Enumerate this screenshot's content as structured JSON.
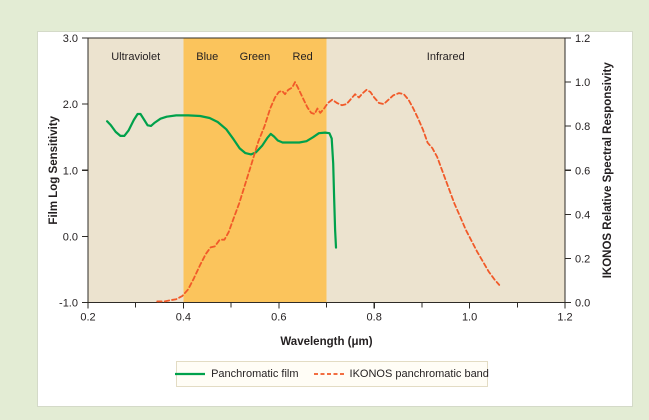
{
  "page": {
    "background": "#e3ecd4"
  },
  "card": {
    "background": "#ffffff",
    "border_color": "#d4dac8"
  },
  "chart_data": {
    "type": "line",
    "title": "",
    "xlabel": "Wavelength (μm)",
    "ylabel_left": "Film Log Sensitivity",
    "ylabel_right": "IKONOS Relative Spectral Responsivity",
    "x_range": [
      0.2,
      1.2
    ],
    "x_major_ticks": [
      0.2,
      0.4,
      0.6,
      0.8,
      1.0,
      1.2
    ],
    "x_minor_ticks": [
      0.3,
      0.5,
      0.7,
      0.9,
      1.1
    ],
    "yleft_range": [
      -1.0,
      3.0
    ],
    "yleft_ticks": [
      -1.0,
      0.0,
      1.0,
      2.0,
      3.0
    ],
    "yright_range": [
      0.0,
      1.2
    ],
    "yright_ticks": [
      0.0,
      0.2,
      0.4,
      0.6,
      0.8,
      1.0,
      1.2
    ],
    "grid": false,
    "legend_position": "bottom",
    "colors": {
      "band_nonvisible": "#ece3cf",
      "band_visible": "#fbc45c",
      "frame": "#2e2b27",
      "text": "#231f20"
    },
    "regions": [
      {
        "label": "Ultraviolet",
        "from": 0.2,
        "to": 0.4,
        "color": "#ece3cf"
      },
      {
        "label": "Blue",
        "from": 0.4,
        "to": 0.5,
        "color": "#fbc45c"
      },
      {
        "label": "Green",
        "from": 0.5,
        "to": 0.6,
        "color": "#fbc45c"
      },
      {
        "label": "Red",
        "from": 0.6,
        "to": 0.7,
        "color": "#fbc45c"
      },
      {
        "label": "Infrared",
        "from": 0.7,
        "to": 1.2,
        "color": "#ece3cf"
      }
    ],
    "series": [
      {
        "name": "Panchromatic film",
        "axis": "left",
        "style": "solid",
        "color": "#00a14b",
        "points": [
          [
            0.24,
            1.74
          ],
          [
            0.248,
            1.68
          ],
          [
            0.258,
            1.58
          ],
          [
            0.268,
            1.52
          ],
          [
            0.276,
            1.52
          ],
          [
            0.285,
            1.6
          ],
          [
            0.296,
            1.76
          ],
          [
            0.304,
            1.85
          ],
          [
            0.31,
            1.85
          ],
          [
            0.318,
            1.76
          ],
          [
            0.325,
            1.68
          ],
          [
            0.332,
            1.67
          ],
          [
            0.34,
            1.72
          ],
          [
            0.352,
            1.78
          ],
          [
            0.365,
            1.81
          ],
          [
            0.385,
            1.83
          ],
          [
            0.41,
            1.83
          ],
          [
            0.435,
            1.82
          ],
          [
            0.455,
            1.79
          ],
          [
            0.472,
            1.73
          ],
          [
            0.49,
            1.62
          ],
          [
            0.505,
            1.47
          ],
          [
            0.518,
            1.33
          ],
          [
            0.53,
            1.26
          ],
          [
            0.542,
            1.24
          ],
          [
            0.552,
            1.27
          ],
          [
            0.565,
            1.37
          ],
          [
            0.576,
            1.49
          ],
          [
            0.583,
            1.55
          ],
          [
            0.59,
            1.51
          ],
          [
            0.598,
            1.45
          ],
          [
            0.608,
            1.42
          ],
          [
            0.625,
            1.42
          ],
          [
            0.643,
            1.42
          ],
          [
            0.658,
            1.44
          ],
          [
            0.672,
            1.5
          ],
          [
            0.684,
            1.56
          ],
          [
            0.697,
            1.57
          ],
          [
            0.706,
            1.56
          ],
          [
            0.711,
            1.48
          ],
          [
            0.714,
            1.1
          ],
          [
            0.716,
            0.6
          ],
          [
            0.718,
            0.1
          ],
          [
            0.72,
            -0.17
          ]
        ]
      },
      {
        "name": "IKONOS panchromatic band",
        "axis": "right",
        "style": "dashed",
        "color": "#f15a29",
        "points": [
          [
            0.345,
            0.005
          ],
          [
            0.36,
            0.005
          ],
          [
            0.372,
            0.01
          ],
          [
            0.385,
            0.015
          ],
          [
            0.398,
            0.03
          ],
          [
            0.41,
            0.06
          ],
          [
            0.422,
            0.11
          ],
          [
            0.435,
            0.17
          ],
          [
            0.447,
            0.22
          ],
          [
            0.457,
            0.25
          ],
          [
            0.466,
            0.255
          ],
          [
            0.476,
            0.285
          ],
          [
            0.486,
            0.285
          ],
          [
            0.495,
            0.32
          ],
          [
            0.505,
            0.38
          ],
          [
            0.517,
            0.45
          ],
          [
            0.53,
            0.54
          ],
          [
            0.543,
            0.63
          ],
          [
            0.557,
            0.73
          ],
          [
            0.57,
            0.8
          ],
          [
            0.582,
            0.88
          ],
          [
            0.592,
            0.93
          ],
          [
            0.6,
            0.955
          ],
          [
            0.607,
            0.96
          ],
          [
            0.613,
            0.945
          ],
          [
            0.62,
            0.965
          ],
          [
            0.628,
            0.975
          ],
          [
            0.634,
            1.0
          ],
          [
            0.64,
            0.975
          ],
          [
            0.65,
            0.93
          ],
          [
            0.66,
            0.885
          ],
          [
            0.668,
            0.86
          ],
          [
            0.675,
            0.855
          ],
          [
            0.681,
            0.88
          ],
          [
            0.687,
            0.86
          ],
          [
            0.695,
            0.88
          ],
          [
            0.703,
            0.905
          ],
          [
            0.712,
            0.92
          ],
          [
            0.722,
            0.905
          ],
          [
            0.732,
            0.895
          ],
          [
            0.742,
            0.9
          ],
          [
            0.752,
            0.925
          ],
          [
            0.76,
            0.945
          ],
          [
            0.768,
            0.93
          ],
          [
            0.776,
            0.95
          ],
          [
            0.784,
            0.965
          ],
          [
            0.792,
            0.955
          ],
          [
            0.8,
            0.93
          ],
          [
            0.81,
            0.905
          ],
          [
            0.82,
            0.9
          ],
          [
            0.83,
            0.92
          ],
          [
            0.84,
            0.94
          ],
          [
            0.852,
            0.95
          ],
          [
            0.862,
            0.945
          ],
          [
            0.872,
            0.92
          ],
          [
            0.882,
            0.88
          ],
          [
            0.892,
            0.835
          ],
          [
            0.902,
            0.785
          ],
          [
            0.912,
            0.725
          ],
          [
            0.922,
            0.7
          ],
          [
            0.932,
            0.66
          ],
          [
            0.944,
            0.59
          ],
          [
            0.956,
            0.52
          ],
          [
            0.968,
            0.45
          ],
          [
            0.98,
            0.39
          ],
          [
            0.992,
            0.33
          ],
          [
            1.004,
            0.28
          ],
          [
            1.016,
            0.23
          ],
          [
            1.028,
            0.185
          ],
          [
            1.04,
            0.14
          ],
          [
            1.052,
            0.105
          ],
          [
            1.062,
            0.08
          ]
        ]
      }
    ]
  }
}
